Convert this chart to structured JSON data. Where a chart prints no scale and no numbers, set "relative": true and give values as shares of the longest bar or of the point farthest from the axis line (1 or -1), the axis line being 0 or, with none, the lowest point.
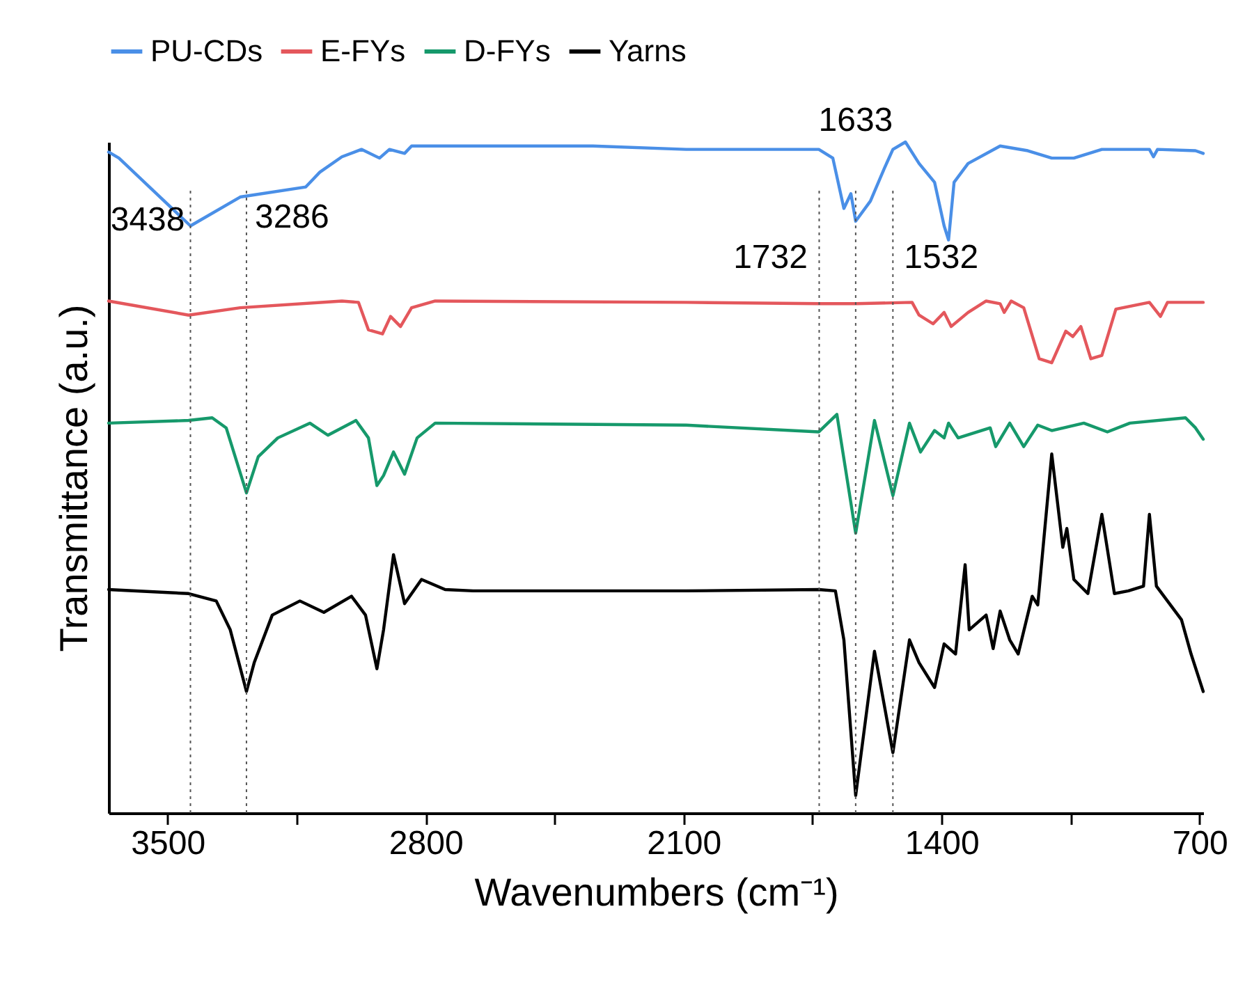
{
  "chart_data": {
    "type": "line",
    "xlabel": "Wavenumbers (cm⁻¹)",
    "ylabel": "Transmittance (a.u.)",
    "relative": true,
    "legend": "top",
    "xlim": [
      3660,
      690
    ],
    "xticks": [
      3500,
      {
        "value": 3150,
        "label": null
      },
      2800,
      {
        "value": 2450,
        "label": null
      },
      2100,
      {
        "value": 1750,
        "label": null
      },
      1400,
      {
        "value": 1050,
        "label": null
      },
      700
    ],
    "series": [
      {
        "name": "PU-CDs",
        "color": "#4a8fe7",
        "x": [
          3660,
          3632,
          3438,
          3303,
          3125,
          3087,
          3027,
          2974,
          2925,
          2898,
          2857,
          2838,
          2346,
          2093,
          1733,
          1695,
          1665,
          1646,
          1633,
          1593,
          1555,
          1532,
          1498,
          1461,
          1419,
          1393,
          1381,
          1366,
          1328,
          1241,
          1166,
          1101,
          1041,
          965,
          836,
          825,
          814,
          711,
          690
        ],
        "values": [
          0.985,
          0.976,
          0.875,
          0.918,
          0.933,
          0.955,
          0.978,
          0.989,
          0.976,
          0.989,
          0.983,
          0.994,
          0.994,
          0.989,
          0.989,
          0.976,
          0.901,
          0.923,
          0.882,
          0.912,
          0.961,
          0.989,
          1.0,
          0.968,
          0.94,
          0.875,
          0.854,
          0.94,
          0.968,
          0.994,
          0.987,
          0.976,
          0.976,
          0.989,
          0.989,
          0.978,
          0.989,
          0.987,
          0.983
        ]
      },
      {
        "name": "E-FYs",
        "color": "#e4575c",
        "x": [
          3660,
          3443,
          3303,
          3027,
          2982,
          2955,
          2917,
          2895,
          2868,
          2838,
          2774,
          2093,
          1733,
          1631,
          1480,
          1461,
          1423,
          1393,
          1374,
          1328,
          1279,
          1241,
          1230,
          1211,
          1177,
          1135,
          1101,
          1063,
          1044,
          1022,
          995,
          965,
          927,
          836,
          806,
          787,
          690
        ],
        "values": [
          0.763,
          0.742,
          0.753,
          0.763,
          0.761,
          0.72,
          0.714,
          0.74,
          0.725,
          0.753,
          0.763,
          0.761,
          0.759,
          0.759,
          0.761,
          0.742,
          0.729,
          0.746,
          0.725,
          0.746,
          0.763,
          0.759,
          0.746,
          0.763,
          0.753,
          0.677,
          0.671,
          0.718,
          0.71,
          0.725,
          0.677,
          0.682,
          0.751,
          0.761,
          0.74,
          0.761,
          0.761
        ]
      },
      {
        "name": "D-FYs",
        "color": "#16996b",
        "x": [
          3660,
          3443,
          3379,
          3341,
          3286,
          3254,
          3201,
          3114,
          3065,
          2989,
          2955,
          2932,
          2914,
          2887,
          2857,
          2823,
          2774,
          2093,
          1733,
          1684,
          1633,
          1582,
          1532,
          1487,
          1457,
          1419,
          1393,
          1381,
          1355,
          1268,
          1253,
          1215,
          1177,
          1139,
          1101,
          1014,
          950,
          889,
          738,
          711,
          690
        ],
        "values": [
          0.581,
          0.585,
          0.589,
          0.574,
          0.477,
          0.531,
          0.559,
          0.581,
          0.563,
          0.585,
          0.559,
          0.488,
          0.503,
          0.538,
          0.505,
          0.559,
          0.581,
          0.578,
          0.568,
          0.594,
          0.417,
          0.585,
          0.473,
          0.581,
          0.538,
          0.57,
          0.559,
          0.581,
          0.559,
          0.574,
          0.546,
          0.581,
          0.546,
          0.578,
          0.57,
          0.581,
          0.568,
          0.581,
          0.589,
          0.574,
          0.557
        ]
      },
      {
        "name": "Yarns",
        "color": "#000000",
        "x": [
          3660,
          3443,
          3368,
          3330,
          3286,
          3265,
          3216,
          3141,
          3076,
          3001,
          2963,
          2932,
          2914,
          2887,
          2857,
          2811,
          2747,
          2671,
          2093,
          1733,
          1688,
          1665,
          1633,
          1582,
          1532,
          1487,
          1461,
          1419,
          1393,
          1362,
          1336,
          1325,
          1279,
          1260,
          1241,
          1215,
          1192,
          1154,
          1139,
          1101,
          1071,
          1060,
          1041,
          1003,
          965,
          931,
          893,
          852,
          836,
          817,
          749,
          723,
          690
        ],
        "values": [
          0.333,
          0.327,
          0.316,
          0.273,
          0.181,
          0.224,
          0.295,
          0.316,
          0.299,
          0.323,
          0.295,
          0.215,
          0.273,
          0.385,
          0.312,
          0.348,
          0.333,
          0.331,
          0.331,
          0.333,
          0.331,
          0.258,
          0.026,
          0.241,
          0.09,
          0.258,
          0.224,
          0.187,
          0.252,
          0.237,
          0.37,
          0.273,
          0.295,
          0.245,
          0.301,
          0.258,
          0.237,
          0.323,
          0.31,
          0.535,
          0.396,
          0.424,
          0.348,
          0.327,
          0.445,
          0.327,
          0.331,
          0.338,
          0.445,
          0.338,
          0.288,
          0.237,
          0.181
        ]
      }
    ],
    "ref_lines": [
      {
        "axis": "x",
        "value": 3438,
        "color": "#555555",
        "line_style": "dotted"
      },
      {
        "axis": "x",
        "value": 3286,
        "color": "#555555",
        "line_style": "dotted"
      },
      {
        "axis": "x",
        "value": 1732,
        "color": "#555555",
        "line_style": "dotted"
      },
      {
        "axis": "x",
        "value": 1633,
        "color": "#555555",
        "line_style": "dotted"
      },
      {
        "axis": "x",
        "value": 1532,
        "color": "#555555",
        "line_style": "dotted"
      }
    ],
    "annotations": [
      {
        "text": "3438",
        "x": 3438,
        "y": 0.875
      },
      {
        "text": "3286",
        "x": 3286,
        "y": 0.918
      },
      {
        "text": "1732",
        "x": 1733,
        "y": 0.989
      },
      {
        "text": "1633",
        "x": 1633,
        "y": 0.882
      },
      {
        "text": "1532",
        "x": 1532,
        "y": 0.989
      }
    ]
  }
}
